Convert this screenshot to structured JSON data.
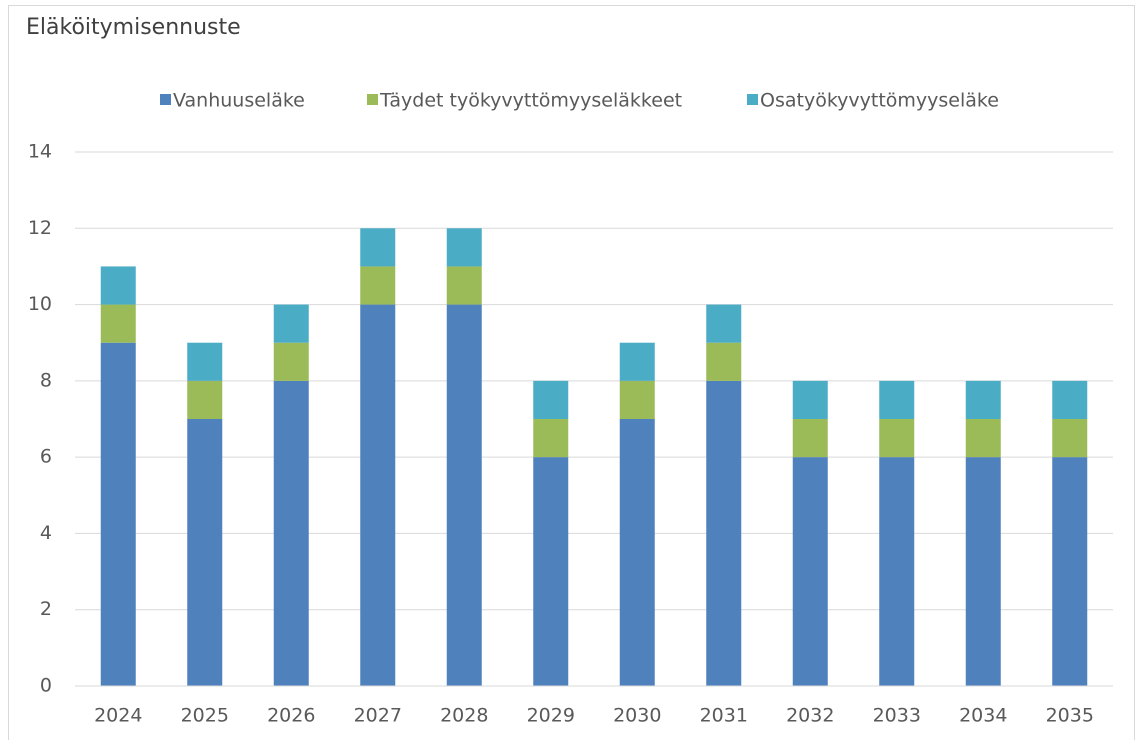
{
  "chart_data": {
    "type": "stacked_bar",
    "title": "Eläköitymisennuste",
    "categories": [
      "2024",
      "2025",
      "2026",
      "2027",
      "2028",
      "2029",
      "2030",
      "2031",
      "2032",
      "2033",
      "2034",
      "2035"
    ],
    "series": [
      {
        "name": "Vanhuuseläke",
        "color": "#4f81bd",
        "values": [
          9,
          7,
          8,
          10,
          10,
          6,
          7,
          8,
          6,
          6,
          6,
          6
        ]
      },
      {
        "name": "Täydet työkyvyttömyyseläkkeet",
        "color": "#9bbb59",
        "values": [
          1,
          1,
          1,
          1,
          1,
          1,
          1,
          1,
          1,
          1,
          1,
          1
        ]
      },
      {
        "name": "Osatyökyvyttömyyseläke",
        "color": "#4bacc6",
        "values": [
          1,
          1,
          1,
          1,
          1,
          1,
          1,
          1,
          1,
          1,
          1,
          1
        ]
      }
    ],
    "ylim": [
      0,
      14
    ],
    "yticks": [
      0,
      2,
      4,
      6,
      8,
      10,
      12,
      14
    ],
    "grid": true,
    "legend": "top"
  }
}
